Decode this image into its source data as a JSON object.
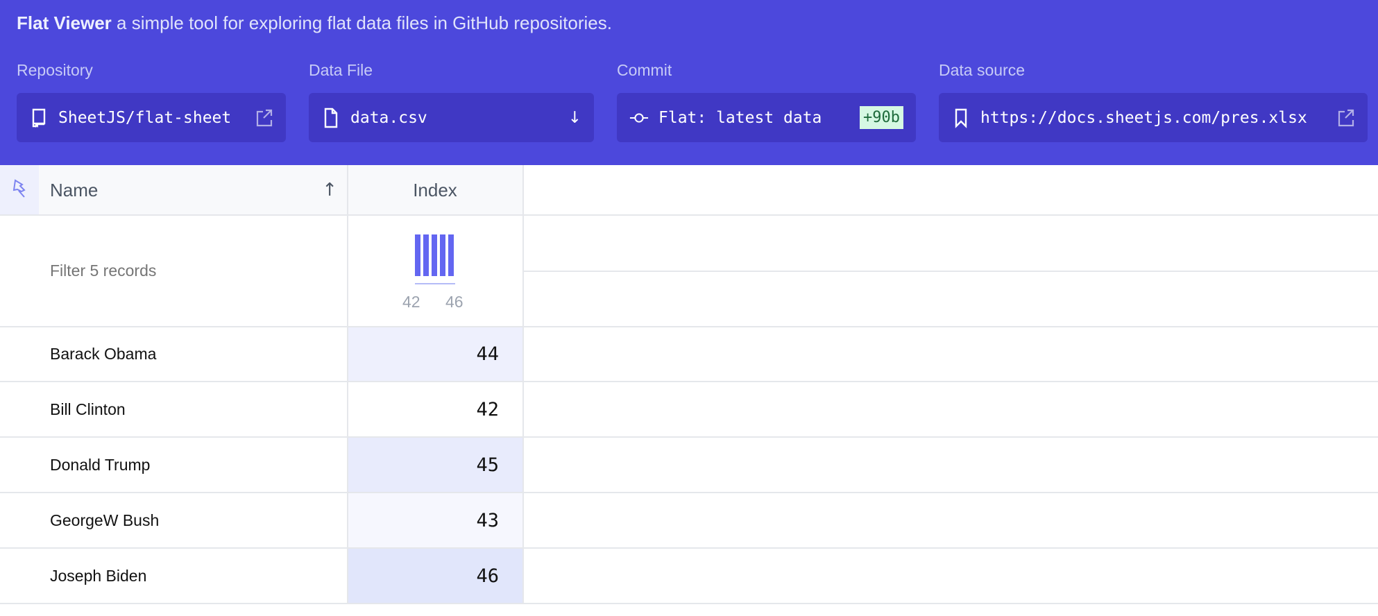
{
  "header": {
    "app_name": "Flat Viewer",
    "tagline": "a simple tool for exploring flat data files in GitHub repositories.",
    "repository": {
      "label": "Repository",
      "value": "SheetJS/flat-sheet",
      "icon": "repo-icon"
    },
    "data_file": {
      "label": "Data File",
      "value": "data.csv",
      "icon": "file-icon"
    },
    "commit": {
      "label": "Commit",
      "value": "Flat: latest data",
      "diff": "+90b",
      "icon": "git-commit-icon"
    },
    "data_source": {
      "label": "Data source",
      "value": "https://docs.sheetjs.com/pres.xlsx",
      "icon": "bookmark-icon"
    }
  },
  "table": {
    "columns": [
      {
        "label": "Name",
        "sort": "ascending"
      },
      {
        "label": "Index"
      }
    ],
    "filter_placeholder": "Filter 5 records",
    "histogram": {
      "min_label": "42",
      "max_label": "46",
      "bar_color": "#6366f1"
    },
    "rows": [
      {
        "name": "Barack Obama",
        "index": "44",
        "shade": "#eef0fd"
      },
      {
        "name": "Bill Clinton",
        "index": "42",
        "shade": "#ffffff"
      },
      {
        "name": "Donald Trump",
        "index": "45",
        "shade": "#e8ebfc"
      },
      {
        "name": "GeorgeW Bush",
        "index": "43",
        "shade": "#f6f7fe"
      },
      {
        "name": "Joseph Biden",
        "index": "46",
        "shade": "#e1e6fb"
      }
    ]
  }
}
